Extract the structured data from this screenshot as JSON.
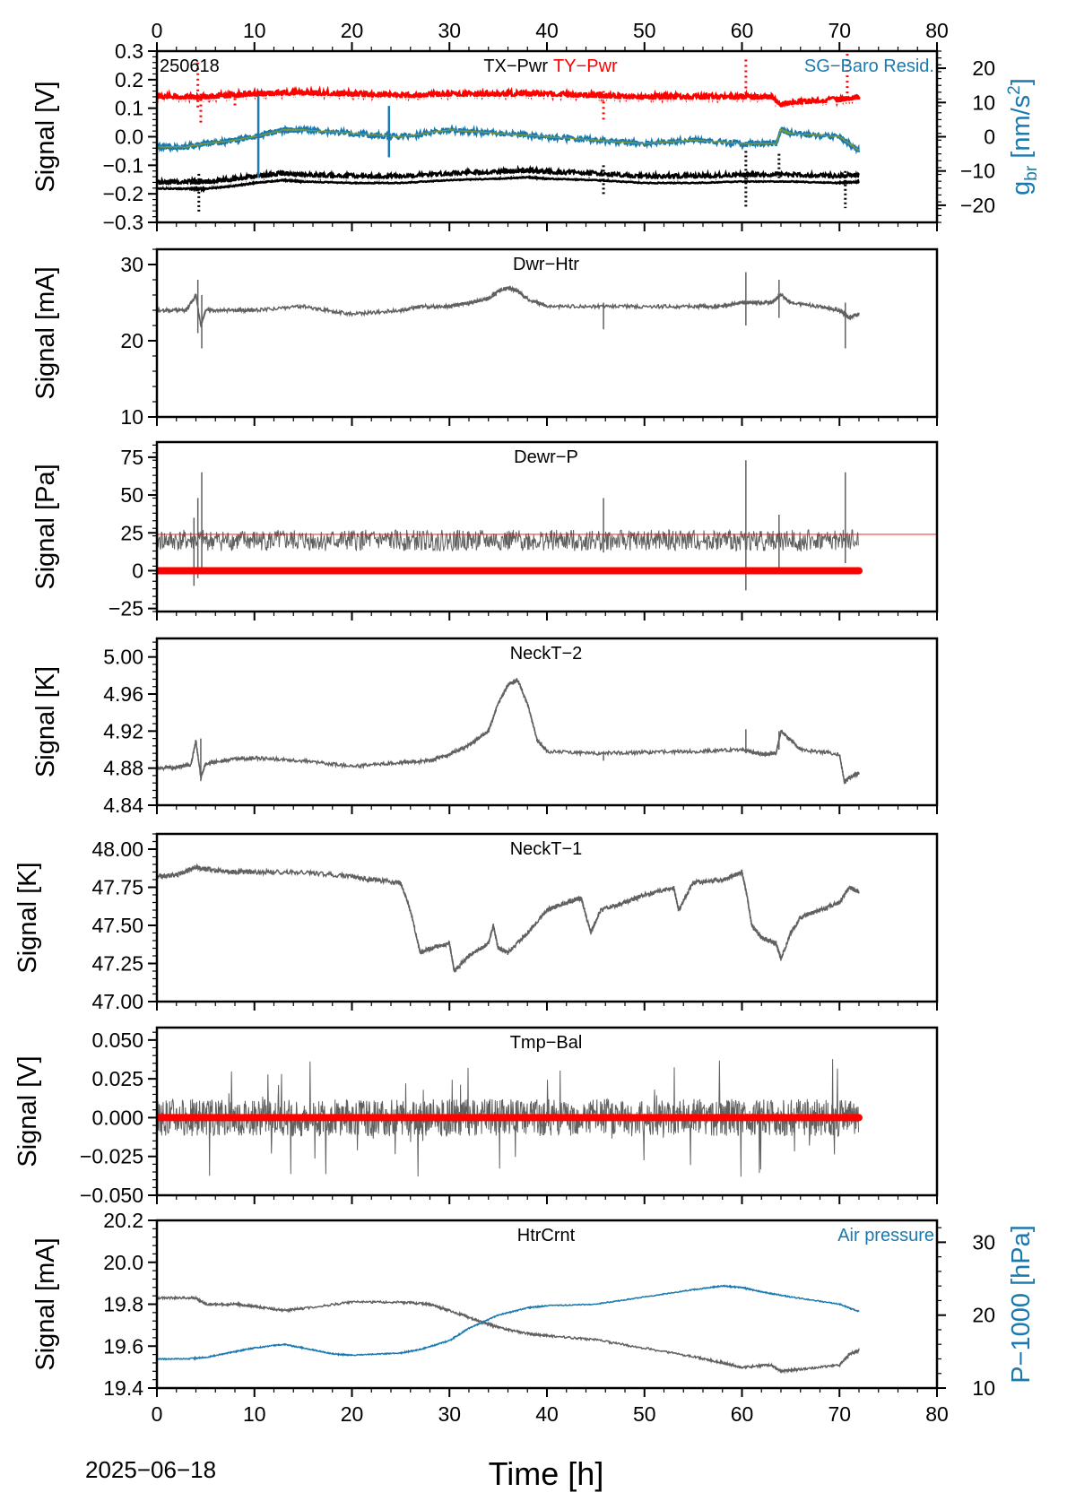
{
  "colors": {
    "black": "#000000",
    "gray": "#606060",
    "red": "#ff0000",
    "blue": "#1a7ab0",
    "green": "#7a9a3a",
    "white": "#ffffff"
  },
  "x_axis": {
    "label": "Time [h]",
    "ticks": [
      "0",
      "10",
      "20",
      "30",
      "40",
      "50",
      "60",
      "70",
      "80"
    ],
    "range": [
      0,
      80
    ]
  },
  "date_label": "2025−06−18",
  "chart_data": [
    {
      "id": "p1",
      "type": "line",
      "ylabel": "Signal [V]",
      "ylim": [
        -0.3,
        0.3
      ],
      "yticks": [
        "0.3",
        "0.2",
        "0.1",
        "0.0",
        "−0.1",
        "−0.2",
        "−0.3"
      ],
      "ytick_values": [
        0.3,
        0.2,
        0.1,
        0.0,
        -0.1,
        -0.2,
        -0.3
      ],
      "corner_label": "250618",
      "titles": [
        "TX−Pwr",
        "TY−Pwr"
      ],
      "right_label": "SG−Baro Resid.",
      "y2label": "g_br [nm/s²]",
      "y2label_main": "g",
      "y2label_sub": "br",
      "y2label_unit": "[nm/s",
      "y2label_sup": "2",
      "y2label_end": "]",
      "y2lim": [
        -25,
        25
      ],
      "y2ticks": [
        "20",
        "10",
        "0",
        "−10",
        "−20"
      ],
      "y2tick_values": [
        20,
        10,
        0,
        -10,
        -20
      ],
      "series": [
        {
          "name": "TY−Pwr",
          "axis": "left",
          "color": "red",
          "x": [
            0,
            3.5,
            4,
            5,
            8,
            10,
            15,
            20,
            25,
            30,
            35,
            40,
            45,
            50,
            55,
            60,
            63,
            64,
            65,
            70,
            72
          ],
          "y": [
            0.14,
            0.14,
            0.135,
            0.14,
            0.145,
            0.15,
            0.155,
            0.15,
            0.145,
            0.15,
            0.15,
            0.15,
            0.145,
            0.14,
            0.14,
            0.14,
            0.14,
            0.11,
            0.12,
            0.13,
            0.14
          ]
        },
        {
          "name": "TX−Pwr",
          "axis": "left",
          "color": "black",
          "x": [
            0,
            3.5,
            4.5,
            5,
            8,
            10,
            13,
            15,
            20,
            25,
            30,
            35,
            38,
            40,
            45,
            50,
            55,
            60,
            65,
            70,
            72
          ],
          "y": [
            -0.17,
            -0.17,
            -0.17,
            -0.17,
            -0.16,
            -0.15,
            -0.14,
            -0.145,
            -0.15,
            -0.15,
            -0.14,
            -0.135,
            -0.13,
            -0.135,
            -0.14,
            -0.15,
            -0.15,
            -0.145,
            -0.145,
            -0.15,
            -0.145
          ]
        },
        {
          "name": "SG−Baro Resid.",
          "axis": "right",
          "color": "blue",
          "x": [
            0,
            3,
            5,
            8,
            10,
            13,
            15,
            20,
            25,
            30,
            35,
            40,
            45,
            50,
            55,
            60,
            63.5,
            64,
            65,
            70,
            72
          ],
          "y": [
            -3,
            -3,
            -2,
            -1,
            0,
            2,
            2,
            1,
            0,
            2,
            1,
            0,
            -1,
            -2,
            -1,
            -2,
            -2,
            2,
            1,
            0,
            -4
          ]
        }
      ]
    },
    {
      "id": "p2",
      "type": "line",
      "title": "Dwr−Htr",
      "ylabel": "Signal [mA]",
      "ylim": [
        10,
        32
      ],
      "yticks": [
        "30",
        "20",
        "10"
      ],
      "ytick_values": [
        30,
        20,
        10
      ],
      "series": [
        {
          "color": "gray",
          "x": [
            0,
            3,
            4,
            4.5,
            5,
            8,
            10,
            15,
            20,
            25,
            27,
            30,
            32,
            34,
            35,
            36,
            37,
            38,
            40,
            45,
            50,
            55,
            58,
            60,
            61,
            63,
            64,
            65,
            68,
            70,
            71,
            72
          ],
          "y": [
            24,
            24,
            26,
            22,
            24,
            24,
            24,
            24.5,
            23.5,
            24,
            24.5,
            24.5,
            25,
            25.5,
            26.5,
            27,
            26.5,
            25.5,
            24.5,
            24.5,
            24.5,
            24.5,
            24.5,
            25,
            25,
            25,
            26,
            25,
            24.5,
            24,
            23,
            23.5
          ]
        }
      ]
    },
    {
      "id": "p3",
      "type": "line",
      "title": "Dewr−P",
      "ylabel": "Signal [Pa]",
      "ylim": [
        -27,
        85
      ],
      "yticks": [
        "75",
        "50",
        "25",
        "0",
        "−25"
      ],
      "ytick_values": [
        75,
        50,
        25,
        0,
        -25
      ],
      "reference_line": 24,
      "series": [
        {
          "name": "signal",
          "color": "gray",
          "x": [
            0,
            72
          ],
          "y": [
            20,
            20
          ]
        },
        {
          "name": "zero",
          "color": "red",
          "x": [
            0,
            72
          ],
          "y": [
            0,
            0
          ]
        }
      ]
    },
    {
      "id": "p4",
      "type": "line",
      "title": "NeckT−2",
      "ylabel": "Signal [K]",
      "ylim": [
        4.84,
        5.02
      ],
      "yticks": [
        "5.00",
        "4.96",
        "4.92",
        "4.88",
        "4.84"
      ],
      "ytick_values": [
        5.0,
        4.96,
        4.92,
        4.88,
        4.84
      ],
      "series": [
        {
          "color": "gray",
          "x": [
            0,
            2,
            3.5,
            4,
            4.5,
            5,
            8,
            10,
            15,
            20,
            25,
            28,
            30,
            32,
            34,
            35,
            36,
            37,
            38,
            39,
            40,
            45,
            50,
            55,
            60,
            62,
            63.5,
            64,
            66,
            70,
            70.5,
            71,
            72
          ],
          "y": [
            4.88,
            4.881,
            4.884,
            4.91,
            4.87,
            4.885,
            4.89,
            4.891,
            4.888,
            4.882,
            4.886,
            4.888,
            4.895,
            4.905,
            4.92,
            4.95,
            4.97,
            4.975,
            4.95,
            4.91,
            4.898,
            4.896,
            4.897,
            4.898,
            4.9,
            4.895,
            4.896,
            4.92,
            4.9,
            4.895,
            4.865,
            4.87,
            4.875
          ]
        }
      ]
    },
    {
      "id": "p5",
      "type": "line",
      "title": "NeckT−1",
      "ylabel": "Signal [K]",
      "ylim": [
        47.0,
        48.1
      ],
      "yticks": [
        "48.00",
        "47.75",
        "47.50",
        "47.25",
        "47.00"
      ],
      "ytick_values": [
        48.0,
        47.75,
        47.5,
        47.25,
        47.0
      ],
      "series": [
        {
          "color": "gray",
          "x": [
            0,
            2,
            4,
            6,
            8,
            10,
            15,
            20,
            22,
            25,
            26,
            27,
            28,
            30,
            30.5,
            32,
            34,
            34.5,
            35,
            36,
            38,
            40,
            42,
            43.5,
            44.5,
            45.5,
            48,
            50,
            53,
            53.5,
            55,
            58,
            60,
            60.5,
            61,
            62,
            63.5,
            64,
            65,
            66,
            68,
            70,
            71,
            72
          ],
          "y": [
            47.82,
            47.83,
            47.88,
            47.86,
            47.85,
            47.85,
            47.85,
            47.82,
            47.8,
            47.78,
            47.6,
            47.32,
            47.35,
            47.38,
            47.2,
            47.3,
            47.38,
            47.5,
            47.35,
            47.32,
            47.45,
            47.6,
            47.65,
            47.68,
            47.45,
            47.6,
            47.65,
            47.7,
            47.75,
            47.6,
            47.78,
            47.8,
            47.85,
            47.7,
            47.5,
            47.42,
            47.38,
            47.28,
            47.45,
            47.55,
            47.6,
            47.65,
            47.75,
            47.72
          ]
        }
      ]
    },
    {
      "id": "p6",
      "type": "line",
      "title": "Tmp−Bal",
      "ylabel": "Signal [V]",
      "ylim": [
        -0.05,
        0.058
      ],
      "yticks": [
        "0.050",
        "0.025",
        "0.000",
        "−0.025",
        "−0.050"
      ],
      "ytick_values": [
        0.05,
        0.025,
        0.0,
        -0.025,
        -0.05
      ],
      "series": [
        {
          "name": "signal",
          "color": "gray",
          "x": [
            0,
            72
          ],
          "y": [
            0,
            0
          ]
        },
        {
          "name": "zero",
          "color": "red",
          "x": [
            0,
            72
          ],
          "y": [
            0,
            0
          ]
        }
      ]
    },
    {
      "id": "p7",
      "type": "line",
      "title": "HtrCrnt",
      "ylabel": "Signal [mA]",
      "ylim": [
        19.4,
        20.2
      ],
      "yticks": [
        "20.2",
        "20.0",
        "19.8",
        "19.6",
        "19.4"
      ],
      "ytick_values": [
        20.2,
        20.0,
        19.8,
        19.6,
        19.4
      ],
      "right_label": "Air pressure",
      "y2label": "P−1000 [hPa]",
      "y2lim": [
        10,
        33
      ],
      "y2ticks": [
        "30",
        "20",
        "10"
      ],
      "y2tick_values": [
        30,
        20,
        10
      ],
      "series": [
        {
          "name": "HtrCrnt",
          "axis": "left",
          "color": "gray",
          "x": [
            0,
            4,
            5,
            8,
            10,
            13,
            15,
            20,
            25,
            28,
            30,
            33,
            35,
            38,
            40,
            45,
            50,
            55,
            58,
            60,
            63,
            64,
            66,
            70,
            71,
            72
          ],
          "y": [
            19.83,
            19.83,
            19.8,
            19.8,
            19.79,
            19.77,
            19.78,
            19.81,
            19.81,
            19.8,
            19.77,
            19.72,
            19.69,
            19.66,
            19.65,
            19.63,
            19.59,
            19.55,
            19.52,
            19.5,
            19.51,
            19.48,
            19.49,
            19.51,
            19.56,
            19.58
          ]
        },
        {
          "name": "Air pressure",
          "axis": "right",
          "color": "blue",
          "x": [
            0,
            3,
            5,
            8,
            10,
            13,
            15,
            18,
            20,
            25,
            27,
            30,
            32,
            35,
            38,
            40,
            45,
            50,
            55,
            58,
            60,
            62,
            65,
            70,
            72
          ],
          "y": [
            14,
            14,
            14.2,
            15,
            15.5,
            16,
            15.5,
            14.7,
            14.5,
            14.8,
            15.3,
            16.5,
            18.2,
            20,
            21,
            21.3,
            21.5,
            22.5,
            23.5,
            24,
            23.8,
            23.2,
            22.5,
            21.5,
            20.5
          ]
        }
      ]
    }
  ]
}
